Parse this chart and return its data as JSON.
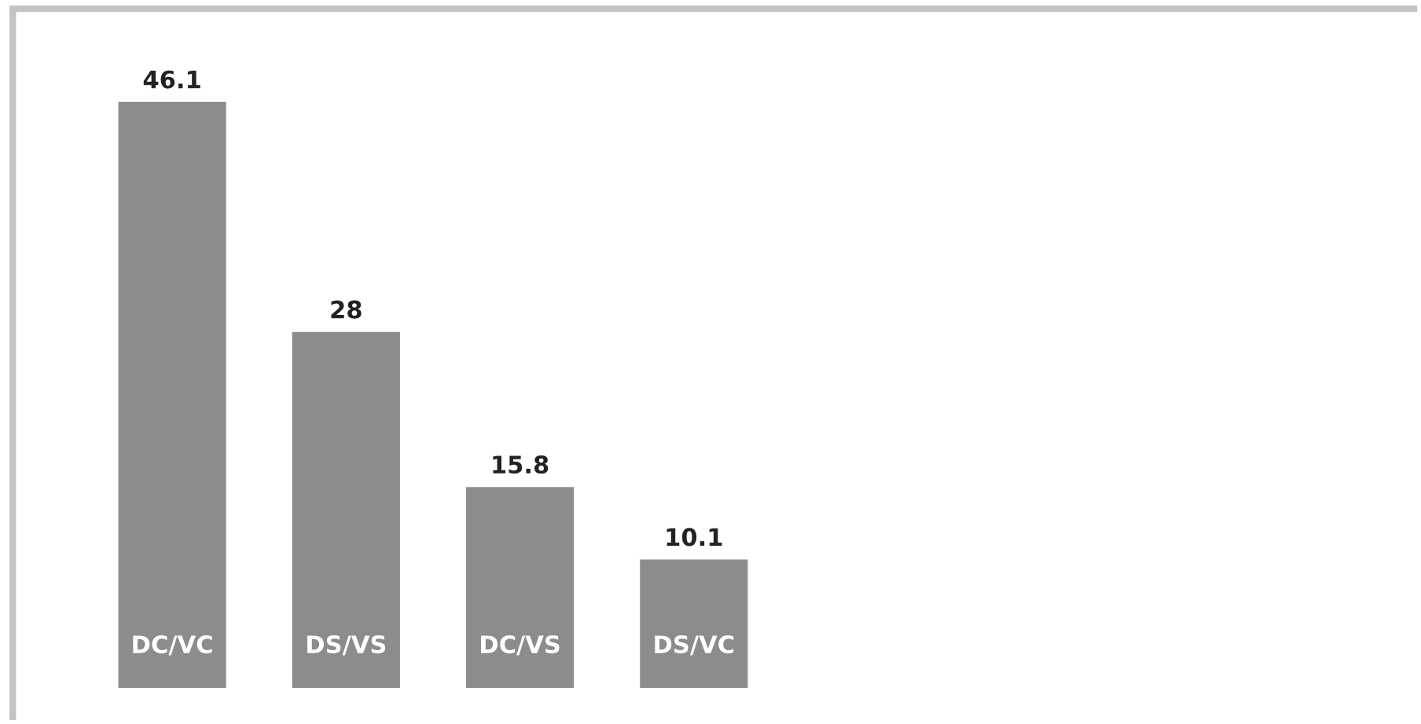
{
  "chart_data": {
    "type": "bar",
    "categories": [
      "DC/VC",
      "DS/VS",
      "DC/VS",
      "DS/VC"
    ],
    "values": [
      46.1,
      28,
      15.8,
      10.1
    ],
    "color": "#8c8c8c",
    "data_labels": true
  }
}
